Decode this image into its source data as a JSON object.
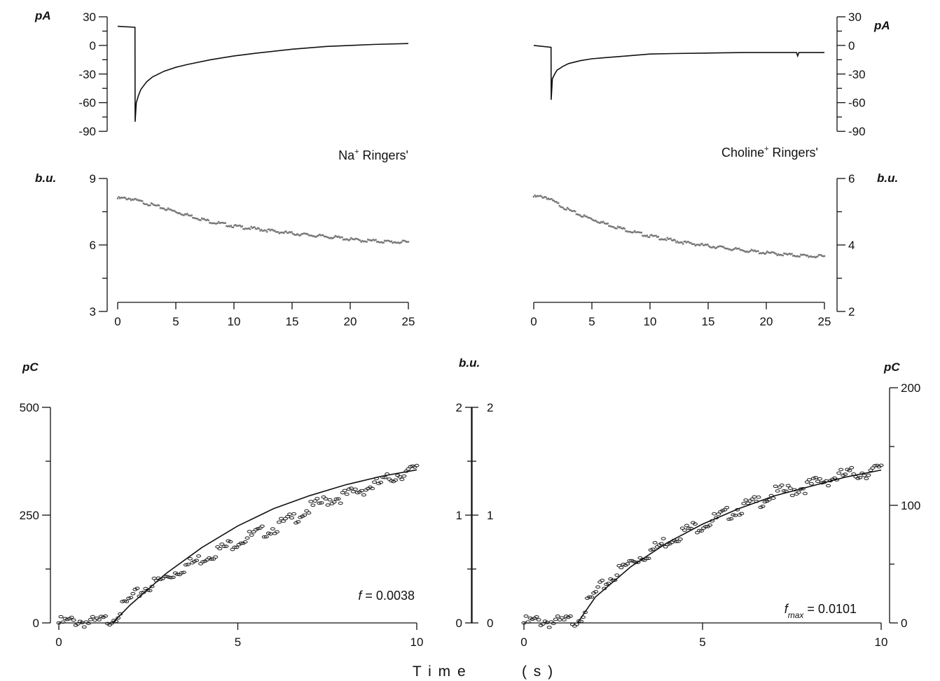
{
  "xlabel": "T i m e          ( s )",
  "chart_data": [
    {
      "id": "current-na",
      "type": "line",
      "ylabel": "pA",
      "xlim": [
        0,
        25
      ],
      "ylim": [
        -105,
        30
      ],
      "yticks": [
        30,
        0,
        -30,
        -60,
        -90
      ],
      "annotation": {
        "text": "Na",
        "sup": "+",
        "tail": " Ringers'"
      },
      "series": [
        {
          "x": [
            0,
            1.49,
            1.5,
            1.6,
            1.8,
            2.0,
            2.5,
            3,
            4,
            5,
            6,
            8,
            10,
            12,
            15,
            18,
            20,
            22,
            25
          ],
          "values": [
            20,
            19,
            -80,
            -60,
            -52,
            -46,
            -38,
            -33,
            -27,
            -23,
            -20,
            -15,
            -11,
            -8,
            -4,
            -1,
            0,
            1,
            2
          ]
        }
      ]
    },
    {
      "id": "current-choline",
      "type": "line",
      "ylabel": "pA",
      "xlim": [
        0,
        25
      ],
      "ylim": [
        -105,
        30
      ],
      "yticks": [
        30,
        0,
        -30,
        -60,
        -90
      ],
      "annotation": {
        "text": "Choline",
        "sup": "+",
        "tail": " Ringers'"
      },
      "series": [
        {
          "x": [
            0,
            1.49,
            1.5,
            1.6,
            1.8,
            2.0,
            2.5,
            3,
            4,
            5,
            6,
            8,
            10,
            12,
            15,
            18,
            20,
            22,
            22.6,
            22.7,
            22.8,
            25
          ],
          "values": [
            0,
            -2,
            -57,
            -35,
            -30,
            -26,
            -22,
            -19,
            -16,
            -14,
            -13,
            -11,
            -9,
            -8.5,
            -8,
            -7.5,
            -7.5,
            -7.5,
            -7.5,
            -11,
            -7.5,
            -7.5
          ]
        }
      ]
    },
    {
      "id": "fluor-na",
      "type": "scatter",
      "ylabel": "b.u.",
      "xlim": [
        0,
        25
      ],
      "ylim": [
        3,
        9
      ],
      "yticks": [
        9,
        6,
        3
      ],
      "xticks": [
        0,
        5,
        10,
        15,
        20,
        25
      ],
      "series": [
        {
          "x": [
            0,
            1,
            2,
            3,
            4,
            5,
            6,
            7,
            8,
            9,
            10,
            11,
            12,
            13,
            14,
            15,
            16,
            17,
            18,
            19,
            20,
            21,
            22,
            23,
            24,
            25
          ],
          "values": [
            8.1,
            8.1,
            7.95,
            7.8,
            7.65,
            7.5,
            7.35,
            7.2,
            7.05,
            6.95,
            6.85,
            6.78,
            6.72,
            6.65,
            6.58,
            6.52,
            6.47,
            6.42,
            6.37,
            6.33,
            6.25,
            6.2,
            6.18,
            6.15,
            6.13,
            6.12
          ]
        }
      ]
    },
    {
      "id": "fluor-choline",
      "type": "scatter",
      "ylabel": "b.u.",
      "xlim": [
        0,
        25
      ],
      "ylim": [
        2,
        6
      ],
      "yticks": [
        6,
        4,
        2
      ],
      "xticks": [
        0,
        5,
        10,
        15,
        20,
        25
      ],
      "series": [
        {
          "x": [
            0,
            1,
            2,
            3,
            4,
            5,
            6,
            7,
            8,
            9,
            10,
            11,
            12,
            13,
            14,
            15,
            16,
            17,
            18,
            19,
            20,
            21,
            22,
            23,
            24,
            25
          ],
          "values": [
            5.45,
            5.45,
            5.25,
            5.05,
            4.9,
            4.78,
            4.66,
            4.55,
            4.45,
            4.35,
            4.27,
            4.2,
            4.13,
            4.07,
            4.02,
            3.97,
            3.93,
            3.88,
            3.84,
            3.8,
            3.76,
            3.73,
            3.7,
            3.68,
            3.66,
            3.65
          ]
        }
      ]
    },
    {
      "id": "charge-na",
      "type": "scatter",
      "ylabel": "pC",
      "right_ylabel": "b.u.",
      "xlim": [
        0,
        10
      ],
      "ylim": [
        0,
        500
      ],
      "yticks": [
        0,
        250,
        500
      ],
      "right_ylim": [
        0,
        2
      ],
      "right_yticks": [
        0,
        1,
        2
      ],
      "xticks": [
        0,
        5,
        10
      ],
      "annotation": {
        "text": "f",
        "sub": "",
        "tail": " = 0.0038"
      },
      "fit": {
        "x": [
          1.5,
          2,
          3,
          4,
          5,
          6,
          7,
          8,
          9,
          10
        ],
        "values": [
          0,
          42,
          115,
          175,
          225,
          265,
          295,
          320,
          340,
          355
        ]
      },
      "series": [
        {
          "x": [
            0,
            0.5,
            1,
            1.5,
            2,
            2.5,
            3,
            3.5,
            4,
            4.5,
            5,
            5.5,
            6,
            6.5,
            7,
            7.5,
            8,
            8.5,
            9,
            9.5,
            10
          ],
          "values": [
            0,
            5,
            0,
            10,
            55,
            85,
            105,
            130,
            150,
            170,
            190,
            205,
            220,
            240,
            265,
            285,
            295,
            310,
            325,
            345,
            355
          ]
        }
      ]
    },
    {
      "id": "charge-choline",
      "type": "scatter",
      "ylabel": "pC",
      "left_ylim": [
        0,
        2
      ],
      "left_yticks": [
        0,
        1,
        2
      ],
      "xlim": [
        0,
        10
      ],
      "ylim": [
        0,
        200
      ],
      "yticks": [
        0,
        100,
        200
      ],
      "xticks": [
        0,
        5,
        10
      ],
      "annotation": {
        "text": "f",
        "sub": "max",
        "tail": " = 0.0101"
      },
      "fit": {
        "x": [
          1.5,
          2,
          3,
          4,
          5,
          6,
          7,
          8,
          9,
          10
        ],
        "values": [
          0,
          22,
          48,
          68,
          84,
          97,
          108,
          116,
          124,
          130
        ]
      },
      "series": [
        {
          "x": [
            0,
            0.5,
            1,
            1.5,
            2,
            2.5,
            3,
            3.5,
            4,
            4.5,
            5,
            5.5,
            6,
            6.5,
            7,
            7.5,
            8,
            8.5,
            9,
            9.5,
            10
          ],
          "values": [
            0,
            2,
            0,
            3,
            25,
            40,
            52,
            60,
            70,
            78,
            84,
            90,
            97,
            102,
            110,
            113,
            117,
            122,
            126,
            128,
            130
          ]
        }
      ]
    }
  ]
}
